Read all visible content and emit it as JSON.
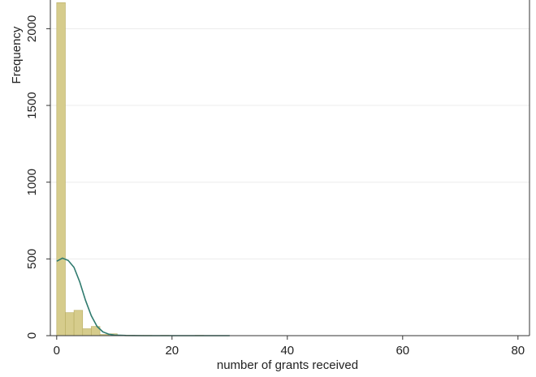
{
  "chart_data": {
    "type": "histogram",
    "xlabel": "number of grants received",
    "ylabel": "Frequency",
    "bins": [
      0,
      1.5,
      3,
      4.5,
      6,
      7.5,
      9,
      10.5,
      12,
      13.5,
      15,
      16.5,
      18,
      19.5,
      21,
      22.5,
      24,
      25.5,
      27,
      28.5,
      30,
      31.5,
      33,
      34.5,
      36,
      37.5,
      39,
      40.5,
      42,
      43.5,
      45,
      46.5,
      48,
      49.5,
      51,
      52.5,
      54,
      55.5,
      57,
      58.5,
      60,
      61.5,
      63,
      64.5,
      66,
      67.5,
      69,
      70.5,
      72
    ],
    "values": [
      2170,
      150,
      165,
      45,
      60,
      8,
      12,
      4,
      3,
      2,
      2,
      1,
      2,
      1,
      1,
      1,
      2,
      1,
      0,
      0,
      0,
      0,
      0,
      0,
      0,
      0,
      0,
      0,
      0,
      0,
      0,
      0,
      1,
      0,
      0,
      0,
      0,
      0,
      0,
      0,
      0,
      0,
      0,
      0,
      0,
      0,
      0,
      1
    ],
    "color": "#d6cc8c",
    "edge_color": "#b8ad62",
    "curve": {
      "x": [
        0,
        1,
        2,
        3,
        4,
        5,
        6,
        7,
        8,
        9,
        10,
        12,
        15,
        20,
        30
      ],
      "values": [
        485,
        505,
        490,
        445,
        350,
        230,
        130,
        60,
        25,
        10,
        4,
        1,
        0,
        0,
        0
      ],
      "color": "#2f7a6e"
    },
    "xlim": [
      -1.1,
      82
    ],
    "ylim": [
      0,
      2187
    ],
    "xticks": [
      0,
      20,
      40,
      60,
      80
    ],
    "yticks": [
      0,
      500,
      1000,
      1500,
      2000
    ],
    "grid": true
  }
}
